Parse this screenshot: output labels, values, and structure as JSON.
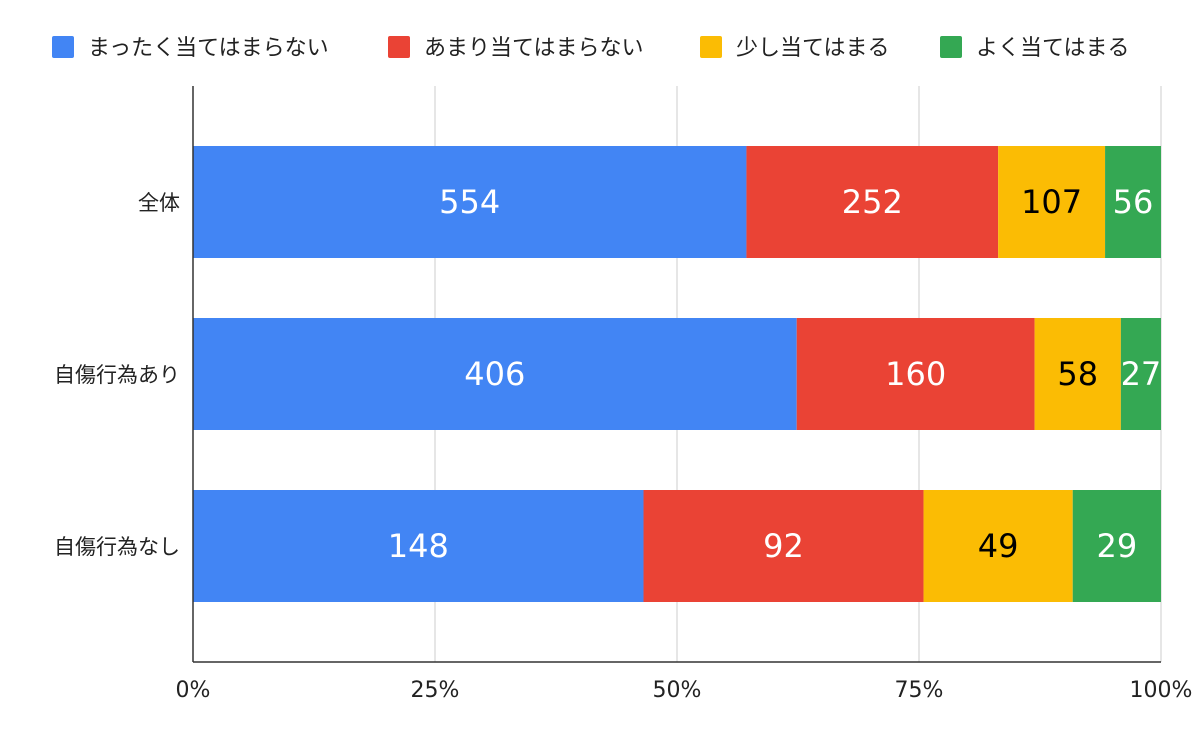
{
  "chart_data": {
    "type": "bar",
    "orientation": "horizontal",
    "stacked": "percent",
    "categories": [
      "全体",
      "自傷行為あり",
      "自傷行為なし"
    ],
    "series": [
      {
        "name": "まったく当てはまらない",
        "color": "#4285f4",
        "label_color": "#ffffff",
        "values": [
          554,
          406,
          148
        ]
      },
      {
        "name": "あまり当てはまらない",
        "color": "#ea4335",
        "label_color": "#ffffff",
        "values": [
          252,
          160,
          92
        ]
      },
      {
        "name": "少し当てはまる",
        "color": "#fbbc04",
        "label_color": "#000000",
        "values": [
          107,
          58,
          49
        ]
      },
      {
        "name": "よく当てはまる",
        "color": "#34a853",
        "label_color": "#ffffff",
        "values": [
          56,
          27,
          29
        ]
      }
    ],
    "x_ticks": [
      "0%",
      "25%",
      "50%",
      "75%",
      "100%"
    ],
    "xlim": [
      0,
      100
    ],
    "grid": true,
    "legend_position": "top"
  }
}
